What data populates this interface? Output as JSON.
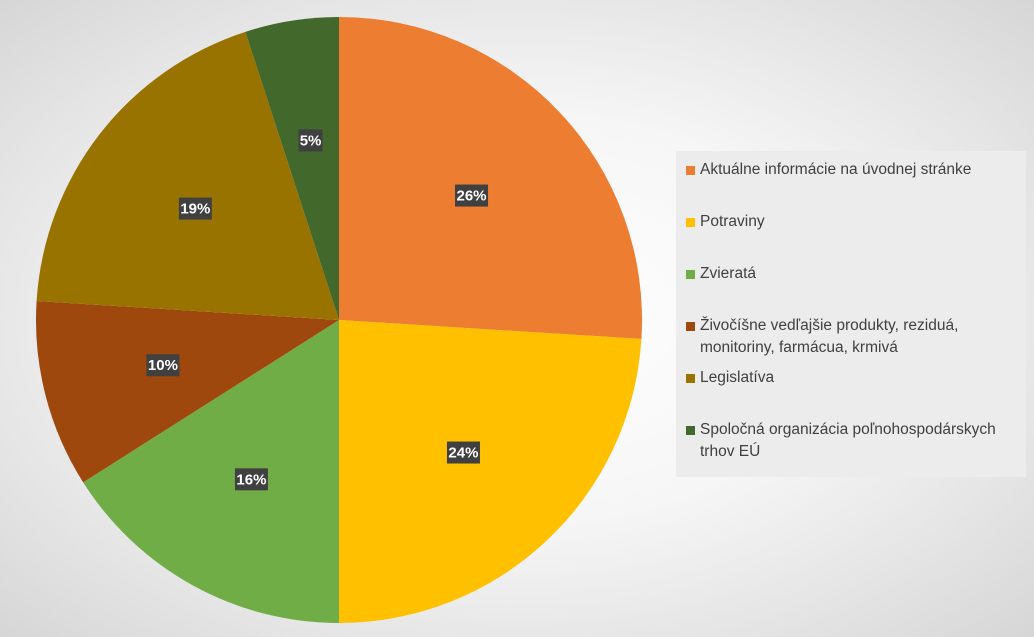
{
  "chart_data": {
    "type": "pie",
    "title": "",
    "legend_position": "right",
    "slices": [
      {
        "label": "Aktuálne informácie na úvodnej stránke",
        "value": 26,
        "display": "26%",
        "color": "#ED7D31"
      },
      {
        "label": "Potraviny",
        "value": 24,
        "display": "24%",
        "color": "#FFC000"
      },
      {
        "label": "Zvieratá",
        "value": 16,
        "display": "16%",
        "color": "#70AD47"
      },
      {
        "label": "Živočíšne vedľajšie produkty, reziduá, monitoriny, farmácua, krmivá",
        "value": 10,
        "display": "10%",
        "color": "#9E480E"
      },
      {
        "label": "Legislatíva",
        "value": 19,
        "display": "19%",
        "color": "#997300"
      },
      {
        "label": "Spoločná organizácia poľnohospodárskych trhov EÚ",
        "value": 5,
        "display": "5%",
        "color": "#43682B"
      }
    ]
  }
}
